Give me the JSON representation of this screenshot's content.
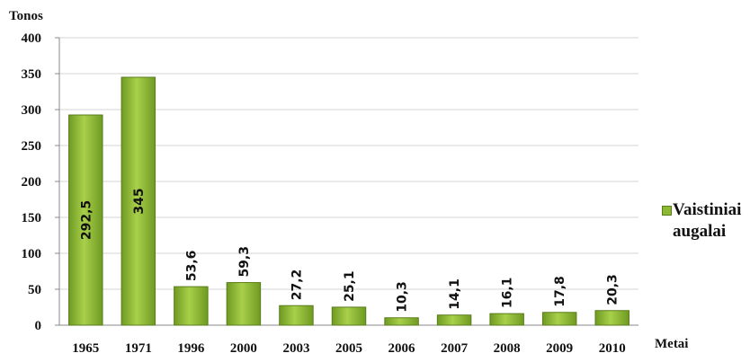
{
  "chart_data": {
    "type": "bar",
    "y_label": "Tonos",
    "x_label": "Metai",
    "categories": [
      "1965",
      "1971",
      "1996",
      "2000",
      "2003",
      "2005",
      "2006",
      "2007",
      "2008",
      "2009",
      "2010"
    ],
    "series": [
      {
        "name": "Vaistiniai augalai",
        "color": "#8cb832",
        "values": [
          292.5,
          345,
          53.6,
          59.3,
          27.2,
          25.1,
          10.3,
          14.1,
          16.1,
          17.8,
          20.3
        ],
        "value_labels": [
          "292,5",
          "345",
          "53,6",
          "59,3",
          "27,2",
          "25,1",
          "10,3",
          "14,1",
          "16,1",
          "17,8",
          "20,3"
        ]
      }
    ],
    "ylim": [
      0,
      400
    ],
    "yticks": [
      0,
      50,
      100,
      150,
      200,
      250,
      300,
      350,
      400
    ],
    "grid": true,
    "legend": "right"
  }
}
